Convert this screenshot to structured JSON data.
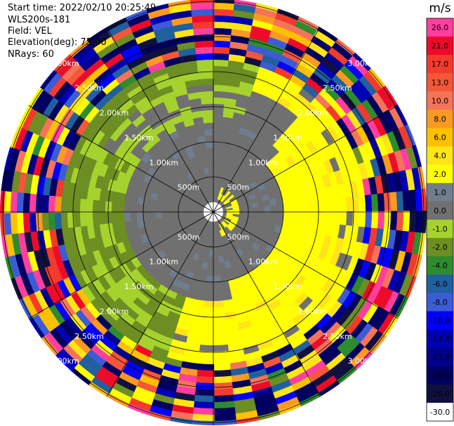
{
  "header": {
    "start_time": "Start time: 2022/02/10 20:25:49",
    "instrument": "WLS200s-181",
    "field": "Field: VEL",
    "elevation": "Elevation(deg): 75.00",
    "nrays": "NRays: 60"
  },
  "colorbar": {
    "unit": "m/s",
    "bins": [
      {
        "label": "26.0",
        "color": "#ff3fa0"
      },
      {
        "label": "21.0",
        "color": "#ee0b2a"
      },
      {
        "label": "17.0",
        "color": "#f33a2c"
      },
      {
        "label": "13.0",
        "color": "#f4563a"
      },
      {
        "label": "10.0",
        "color": "#f47459"
      },
      {
        "label": "8.0",
        "color": "#fb9a20"
      },
      {
        "label": "6.0",
        "color": "#ffc000"
      },
      {
        "label": "4.0",
        "color": "#ffe41a"
      },
      {
        "label": "2.0",
        "color": "#ffff00"
      },
      {
        "label": "1.0",
        "color": "#6f7d8c"
      },
      {
        "label": "0.0",
        "color": "#707070"
      },
      {
        "label": "-1.0",
        "color": "#a6d22d"
      },
      {
        "label": "-2.0",
        "color": "#6c8e23"
      },
      {
        "label": "-4.0",
        "color": "#2e8b2e"
      },
      {
        "label": "-6.0",
        "color": "#20609e"
      },
      {
        "label": "-8.0",
        "color": "#3c5bd6"
      },
      {
        "label": "-10.0",
        "color": "#0000ff"
      },
      {
        "label": "-13.0",
        "color": "#0000b4"
      },
      {
        "label": "-17.0",
        "color": "#00008b"
      },
      {
        "label": "-21.0",
        "color": "#000060"
      },
      {
        "label": "-26.0",
        "color": "#101040"
      },
      {
        "label": "-30.0",
        "color": "#ffffff"
      }
    ]
  },
  "chart_data": {
    "type": "heatmap",
    "projection": "polar PPI",
    "field": "VEL",
    "elevation_deg": 75.0,
    "nrays": 60,
    "range_rings_km": [
      0.5,
      1.0,
      1.5,
      2.0,
      2.5,
      3.0
    ],
    "range_labels": [
      "500m",
      "1.00km",
      "1.50km",
      "2.00km",
      "2.50km",
      "3.00km"
    ],
    "azimuth_lines_deg": [
      0,
      30,
      60,
      90,
      120,
      150,
      180,
      210,
      240,
      270,
      300,
      330
    ],
    "bands": [
      {
        "from_km": 0.0,
        "to_km": 0.5,
        "dominant_bin": "0.0",
        "note": "yellow patch east of centre"
      },
      {
        "from_km": 0.5,
        "to_km": 1.25,
        "dominant_bin": "0.0",
        "east_bin": "2.0"
      },
      {
        "from_km": 1.25,
        "to_km": 1.75,
        "west_bin": "-2.0",
        "east_bin": "2.0",
        "north_bin": "-1.0"
      },
      {
        "from_km": 1.75,
        "to_km": 2.1,
        "west_bin": "-2.0",
        "east_bin": "2.0"
      },
      {
        "from_km": 2.1,
        "to_km": 3.4,
        "dominant_bin": "mixed (-30 to 26)"
      }
    ]
  }
}
